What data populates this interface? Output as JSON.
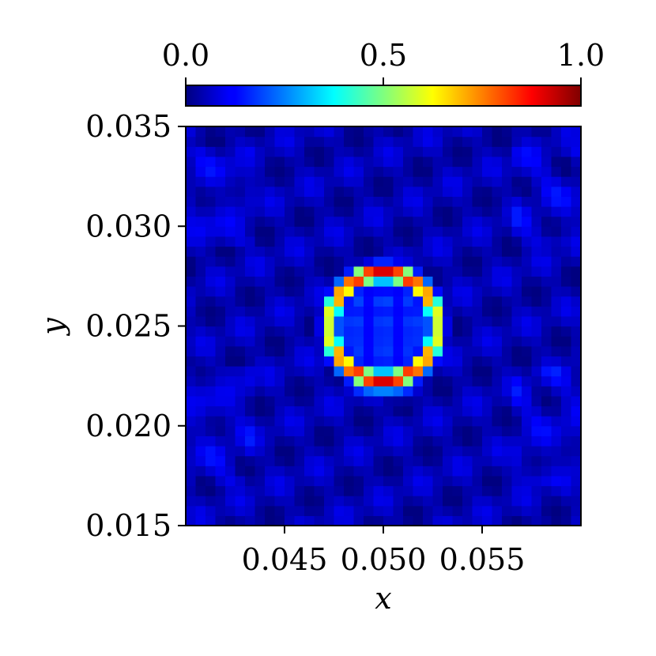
{
  "chart_data": {
    "type": "heatmap",
    "title": "",
    "xlabel": "x",
    "ylabel": "y",
    "xlim": [
      0.04,
      0.06
    ],
    "ylim": [
      0.015,
      0.035
    ],
    "x_ticks": [
      0.045,
      0.05,
      0.055
    ],
    "x_tick_labels": [
      "0.045",
      "0.050",
      "0.055"
    ],
    "y_ticks": [
      0.015,
      0.02,
      0.025,
      0.03,
      0.035
    ],
    "y_tick_labels": [
      "0.015",
      "0.020",
      "0.025",
      "0.030",
      "0.035"
    ],
    "colormap": "jet",
    "colorbar": {
      "placement": "top",
      "range": [
        0.0,
        1.0
      ],
      "ticks": [
        0.0,
        0.5,
        1.0
      ],
      "tick_labels": [
        "0.0",
        "0.5",
        "1.0"
      ]
    },
    "grid": {
      "nx": 40,
      "ny": 40
    },
    "features": {
      "background_level": 0.05,
      "ring": {
        "center": [
          0.05,
          0.025
        ],
        "radius": 0.0027,
        "peak_value": 0.93
      },
      "inner_core_level": 0.12,
      "lower_band": {
        "center_y": 0.0222,
        "value": 0.45
      }
    }
  }
}
